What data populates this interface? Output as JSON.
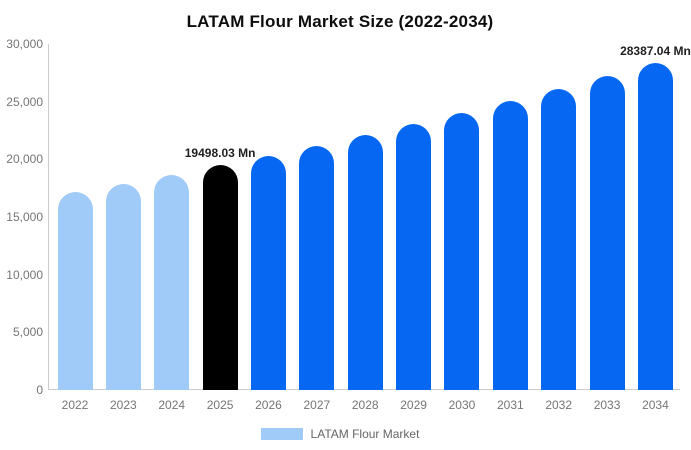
{
  "title": "LATAM Flour Market Size (2022-2034)",
  "legend": {
    "label": "LATAM Flour Market",
    "swatch_color": "#A0CBF8"
  },
  "colors": {
    "historical_bar": "#A0CBF8",
    "highlight_bar": "#000000",
    "forecast_bar": "#0567F2",
    "axis_line": "#cccccc",
    "tick_text": "#757575",
    "value_label_text": "#1f1f1f",
    "background": "#ffffff"
  },
  "chart_data": {
    "type": "bar",
    "title": "LATAM Flour Market Size (2022-2034)",
    "xlabel": "",
    "ylabel": "",
    "unit": "Mn",
    "categories": [
      "2022",
      "2023",
      "2024",
      "2025",
      "2026",
      "2027",
      "2028",
      "2029",
      "2030",
      "2031",
      "2032",
      "2033",
      "2034"
    ],
    "values": [
      17200,
      17900,
      18650,
      19498.03,
      20330,
      21200,
      22100,
      23040,
      24020,
      25050,
      26120,
      27230,
      28387.04
    ],
    "bar_colors": [
      "#A0CBF8",
      "#A0CBF8",
      "#A0CBF8",
      "#000000",
      "#0567F2",
      "#0567F2",
      "#0567F2",
      "#0567F2",
      "#0567F2",
      "#0567F2",
      "#0567F2",
      "#0567F2",
      "#0567F2"
    ],
    "ylim": [
      0,
      30000
    ],
    "yticks": [
      {
        "value": 0,
        "label": "0"
      },
      {
        "value": 5000,
        "label": "5,000"
      },
      {
        "value": 10000,
        "label": "10,000"
      },
      {
        "value": 15000,
        "label": "15,000"
      },
      {
        "value": 20000,
        "label": "20,000"
      },
      {
        "value": 25000,
        "label": "25,000"
      },
      {
        "value": 30000,
        "label": "30,000"
      }
    ],
    "grid": "off",
    "legend_position": "bottom-center",
    "annotations": [
      {
        "category": "2025",
        "index": 3,
        "text": "19498.03 Mn"
      },
      {
        "category": "2034",
        "index": 12,
        "text": "28387.04 Mn"
      }
    ]
  }
}
